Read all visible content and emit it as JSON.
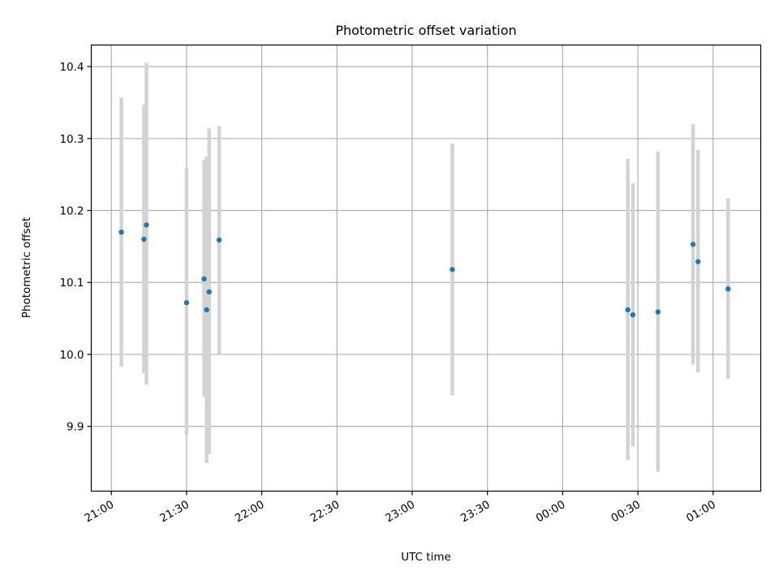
{
  "chart_data": {
    "type": "scatter",
    "title": "Photometric offset variation",
    "xlabel": "UTC time",
    "ylabel": "Photometric offset",
    "x_ticks": [
      "21:00",
      "21:30",
      "22:00",
      "22:30",
      "23:00",
      "23:30",
      "00:00",
      "00:30",
      "01:00"
    ],
    "y_ticks": [
      "9.9",
      "10.0",
      "10.1",
      "10.2",
      "10.3",
      "10.4"
    ],
    "xlim": [
      "20:52",
      "01:19"
    ],
    "ylim": [
      9.81,
      10.43
    ],
    "grid": true,
    "colors": {
      "point": "#1f77b4",
      "errorbar": "#d3d3d3",
      "grid": "#b0b0b0"
    },
    "points": [
      {
        "x": "21:04",
        "y": 10.17,
        "ylow": 9.983,
        "yhigh": 10.357
      },
      {
        "x": "21:13",
        "y": 10.16,
        "ylow": 9.974,
        "yhigh": 10.347
      },
      {
        "x": "21:14",
        "y": 10.18,
        "ylow": 9.958,
        "yhigh": 10.405
      },
      {
        "x": "21:30",
        "y": 10.072,
        "ylow": 9.888,
        "yhigh": 10.259
      },
      {
        "x": "21:37",
        "y": 10.105,
        "ylow": 9.941,
        "yhigh": 10.27
      },
      {
        "x": "21:38",
        "y": 10.062,
        "ylow": 9.849,
        "yhigh": 10.275
      },
      {
        "x": "21:39",
        "y": 10.087,
        "ylow": 9.861,
        "yhigh": 10.314
      },
      {
        "x": "21:43",
        "y": 10.159,
        "ylow": 10.001,
        "yhigh": 10.317
      },
      {
        "x": "23:16",
        "y": 10.118,
        "ylow": 9.943,
        "yhigh": 10.293
      },
      {
        "x": "00:26",
        "y": 10.062,
        "ylow": 9.853,
        "yhigh": 10.272
      },
      {
        "x": "00:28",
        "y": 10.055,
        "ylow": 9.872,
        "yhigh": 10.238
      },
      {
        "x": "00:38",
        "y": 10.059,
        "ylow": 9.837,
        "yhigh": 10.282
      },
      {
        "x": "00:52",
        "y": 10.153,
        "ylow": 9.986,
        "yhigh": 10.32
      },
      {
        "x": "00:54",
        "y": 10.129,
        "ylow": 9.975,
        "yhigh": 10.284
      },
      {
        "x": "01:06",
        "y": 10.091,
        "ylow": 9.966,
        "yhigh": 10.217
      }
    ]
  }
}
